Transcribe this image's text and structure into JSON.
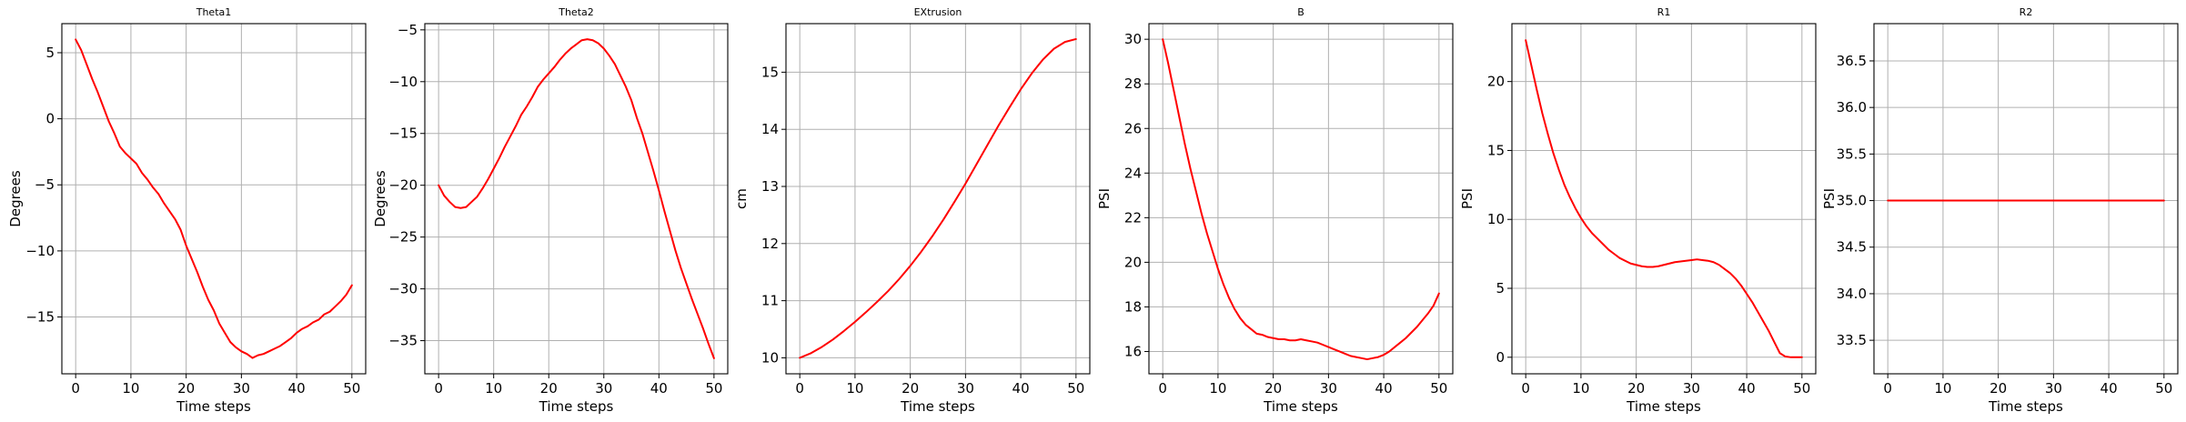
{
  "series_color": "#ff0000",
  "chart_data": [
    {
      "type": "line",
      "title": "Theta1",
      "xlabel": "Time steps",
      "ylabel": "Degrees",
      "xlim": [
        -2.5,
        52.5
      ],
      "ylim": [
        -19.3,
        7.2
      ],
      "xticks": [
        0,
        10,
        20,
        30,
        40,
        50
      ],
      "yticks": [
        5,
        0,
        -5,
        -10,
        -15
      ],
      "grid": true,
      "x": [
        0,
        1,
        2,
        3,
        4,
        5,
        6,
        7,
        8,
        9,
        10,
        11,
        12,
        13,
        14,
        15,
        16,
        17,
        18,
        19,
        20,
        21,
        22,
        23,
        24,
        25,
        26,
        27,
        28,
        29,
        30,
        31,
        32,
        33,
        34,
        35,
        36,
        37,
        38,
        39,
        40,
        41,
        42,
        43,
        44,
        45,
        46,
        47,
        48,
        49,
        50
      ],
      "y": [
        6.0,
        5.2,
        4.1,
        3.0,
        2.0,
        0.9,
        -0.2,
        -1.1,
        -2.1,
        -2.6,
        -3.0,
        -3.4,
        -4.1,
        -4.6,
        -5.2,
        -5.7,
        -6.4,
        -7.0,
        -7.6,
        -8.4,
        -9.6,
        -10.6,
        -11.6,
        -12.7,
        -13.7,
        -14.5,
        -15.5,
        -16.2,
        -16.9,
        -17.3,
        -17.6,
        -17.8,
        -18.1,
        -17.9,
        -17.8,
        -17.6,
        -17.4,
        -17.2,
        -16.9,
        -16.6,
        -16.2,
        -15.9,
        -15.7,
        -15.4,
        -15.2,
        -14.8,
        -14.6,
        -14.2,
        -13.8,
        -13.3,
        -12.6
      ]
    },
    {
      "type": "line",
      "title": "Theta2",
      "xlabel": "Time steps",
      "ylabel": "Degrees",
      "xlim": [
        -2.5,
        52.5
      ],
      "ylim": [
        -38.2,
        -4.4
      ],
      "xticks": [
        0,
        10,
        20,
        30,
        40,
        50
      ],
      "yticks": [
        -5,
        -10,
        -15,
        -20,
        -25,
        -30,
        -35
      ],
      "grid": true,
      "x": [
        0,
        1,
        2,
        3,
        4,
        5,
        6,
        7,
        8,
        9,
        10,
        11,
        12,
        13,
        14,
        15,
        16,
        17,
        18,
        19,
        20,
        21,
        22,
        23,
        24,
        25,
        26,
        27,
        28,
        29,
        30,
        31,
        32,
        33,
        34,
        35,
        36,
        37,
        38,
        39,
        40,
        41,
        42,
        43,
        44,
        45,
        46,
        47,
        48,
        49,
        50
      ],
      "y": [
        -20.0,
        -21.0,
        -21.6,
        -22.1,
        -22.2,
        -22.1,
        -21.6,
        -21.1,
        -20.3,
        -19.4,
        -18.4,
        -17.4,
        -16.3,
        -15.3,
        -14.3,
        -13.2,
        -12.4,
        -11.5,
        -10.5,
        -9.8,
        -9.2,
        -8.6,
        -7.9,
        -7.3,
        -6.8,
        -6.4,
        -6.0,
        -5.9,
        -6.0,
        -6.3,
        -6.8,
        -7.5,
        -8.3,
        -9.4,
        -10.5,
        -11.8,
        -13.5,
        -15.0,
        -16.8,
        -18.6,
        -20.5,
        -22.5,
        -24.4,
        -26.3,
        -28.0,
        -29.5,
        -31.0,
        -32.4,
        -33.8,
        -35.3,
        -36.7
      ]
    },
    {
      "type": "line",
      "title": "EXtrusion",
      "xlabel": "Time steps",
      "ylabel": "cm",
      "xlim": [
        -2.5,
        52.5
      ],
      "ylim": [
        9.72,
        15.85
      ],
      "xticks": [
        0,
        10,
        20,
        30,
        40,
        50
      ],
      "yticks": [
        15,
        14,
        13,
        12,
        11,
        10
      ],
      "grid": true,
      "x": [
        0,
        2,
        4,
        6,
        8,
        10,
        12,
        14,
        16,
        18,
        20,
        22,
        24,
        26,
        28,
        30,
        32,
        34,
        36,
        38,
        40,
        42,
        44,
        46,
        48,
        50
      ],
      "y": [
        10.0,
        10.08,
        10.19,
        10.32,
        10.47,
        10.63,
        10.8,
        10.98,
        11.17,
        11.38,
        11.61,
        11.86,
        12.13,
        12.42,
        12.73,
        13.05,
        13.39,
        13.73,
        14.07,
        14.39,
        14.7,
        14.98,
        15.22,
        15.41,
        15.53,
        15.58
      ]
    },
    {
      "type": "line",
      "title": "B",
      "xlabel": "Time steps",
      "ylabel": "PSI",
      "xlim": [
        -2.5,
        52.5
      ],
      "ylim": [
        15.0,
        30.7
      ],
      "xticks": [
        0,
        10,
        20,
        30,
        40,
        50
      ],
      "yticks": [
        30,
        28,
        26,
        24,
        22,
        20,
        18,
        16
      ],
      "grid": true,
      "x": [
        0,
        1,
        2,
        3,
        4,
        5,
        6,
        7,
        8,
        9,
        10,
        11,
        12,
        13,
        14,
        15,
        16,
        17,
        18,
        19,
        20,
        21,
        22,
        23,
        24,
        25,
        26,
        27,
        28,
        29,
        30,
        31,
        32,
        33,
        34,
        35,
        36,
        37,
        38,
        39,
        40,
        41,
        42,
        43,
        44,
        45,
        46,
        47,
        48,
        49,
        50
      ],
      "y": [
        30.0,
        28.9,
        27.7,
        26.5,
        25.3,
        24.2,
        23.2,
        22.2,
        21.3,
        20.5,
        19.7,
        19.0,
        18.4,
        17.9,
        17.5,
        17.2,
        17.0,
        16.8,
        16.75,
        16.65,
        16.6,
        16.55,
        16.55,
        16.5,
        16.5,
        16.55,
        16.5,
        16.45,
        16.4,
        16.3,
        16.2,
        16.1,
        16.0,
        15.9,
        15.8,
        15.75,
        15.7,
        15.65,
        15.7,
        15.75,
        15.85,
        16.0,
        16.2,
        16.4,
        16.6,
        16.85,
        17.1,
        17.4,
        17.7,
        18.05,
        18.6
      ]
    },
    {
      "type": "line",
      "title": "R1",
      "xlabel": "Time steps",
      "ylabel": "PSI",
      "xlim": [
        -2.5,
        52.5
      ],
      "ylim": [
        -1.2,
        24.2
      ],
      "xticks": [
        0,
        10,
        20,
        30,
        40,
        50
      ],
      "yticks": [
        20,
        15,
        10,
        5,
        0
      ],
      "grid": true,
      "x": [
        0,
        1,
        2,
        3,
        4,
        5,
        6,
        7,
        8,
        9,
        10,
        11,
        12,
        13,
        14,
        15,
        16,
        17,
        18,
        19,
        20,
        21,
        22,
        23,
        24,
        25,
        26,
        27,
        28,
        29,
        30,
        31,
        32,
        33,
        34,
        35,
        36,
        37,
        38,
        39,
        40,
        41,
        42,
        43,
        44,
        45,
        46,
        47,
        48,
        49,
        50
      ],
      "y": [
        23.0,
        21.2,
        19.4,
        17.7,
        16.2,
        14.8,
        13.6,
        12.5,
        11.6,
        10.8,
        10.1,
        9.5,
        9.0,
        8.6,
        8.2,
        7.8,
        7.5,
        7.2,
        7.0,
        6.8,
        6.7,
        6.6,
        6.55,
        6.55,
        6.6,
        6.7,
        6.8,
        6.9,
        6.95,
        7.0,
        7.05,
        7.1,
        7.05,
        7.0,
        6.9,
        6.7,
        6.4,
        6.1,
        5.7,
        5.2,
        4.6,
        4.0,
        3.3,
        2.6,
        1.9,
        1.1,
        0.3,
        0.05,
        0.0,
        0.0,
        0.0
      ]
    },
    {
      "type": "line",
      "title": "R2",
      "xlabel": "Time steps",
      "ylabel": "PSI",
      "xlim": [
        -2.5,
        52.5
      ],
      "ylim": [
        33.14,
        36.9
      ],
      "xticks": [
        0,
        10,
        20,
        30,
        40,
        50
      ],
      "yticks": [
        36.5,
        36.0,
        35.5,
        35.0,
        34.5,
        34.0,
        33.5
      ],
      "ytick_labels": [
        "36.5",
        "36.0",
        "35.5",
        "35.0",
        "34.5",
        "34.0",
        "33.5"
      ],
      "grid": true,
      "x": [
        0,
        50
      ],
      "y": [
        35.0,
        35.0
      ]
    }
  ]
}
